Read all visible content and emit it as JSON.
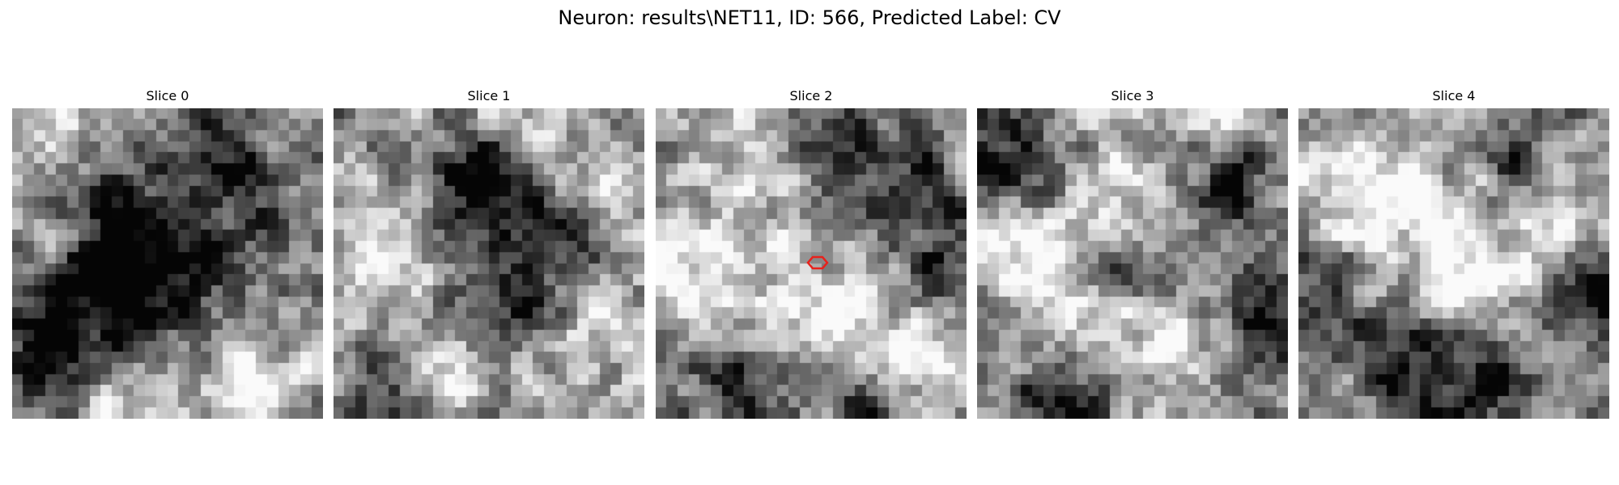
{
  "figure": {
    "title": "Neuron: results\\NET11, ID: 566, Predicted Label: CV"
  },
  "colormap": "gray",
  "grid_size": 28,
  "marker": {
    "shape": "hexagon",
    "color": "#e8221c",
    "panel_index": 2
  },
  "panels": [
    {
      "label": "Slice 0",
      "seed": 11,
      "dark": [
        [
          0.4,
          0.38,
          0.26
        ],
        [
          0.48,
          0.52,
          0.22
        ],
        [
          0.1,
          0.82,
          0.16
        ],
        [
          0.24,
          0.62,
          0.18
        ],
        [
          0.7,
          0.22,
          0.18
        ]
      ],
      "light": [
        [
          0.76,
          0.9,
          0.22
        ],
        [
          0.55,
          0.32,
          0.16
        ],
        [
          0.18,
          0.08,
          0.15
        ],
        [
          0.1,
          0.46,
          0.14
        ],
        [
          0.35,
          0.98,
          0.14
        ]
      ]
    },
    {
      "label": "Slice 1",
      "seed": 23,
      "dark": [
        [
          0.52,
          0.36,
          0.22
        ],
        [
          0.46,
          0.2,
          0.16
        ],
        [
          0.6,
          0.64,
          0.14
        ],
        [
          0.18,
          0.92,
          0.14
        ],
        [
          0.82,
          0.48,
          0.12
        ]
      ],
      "light": [
        [
          0.18,
          0.42,
          0.26
        ],
        [
          0.84,
          0.68,
          0.22
        ],
        [
          0.88,
          0.26,
          0.14
        ],
        [
          0.38,
          0.86,
          0.14
        ],
        [
          0.62,
          0.08,
          0.14
        ]
      ]
    },
    {
      "label": "Slice 2",
      "seed": 37,
      "dark": [
        [
          0.8,
          0.26,
          0.18
        ],
        [
          0.52,
          0.04,
          0.16
        ],
        [
          0.94,
          0.54,
          0.14
        ],
        [
          0.26,
          0.9,
          0.14
        ],
        [
          0.7,
          0.96,
          0.12
        ]
      ],
      "light": [
        [
          0.18,
          0.5,
          0.28
        ],
        [
          0.34,
          0.1,
          0.16
        ],
        [
          0.56,
          0.64,
          0.16
        ],
        [
          0.84,
          0.88,
          0.16
        ],
        [
          0.88,
          0.72,
          0.12
        ]
      ]
    },
    {
      "label": "Slice 3",
      "seed": 53,
      "dark": [
        [
          0.1,
          0.16,
          0.18
        ],
        [
          0.8,
          0.22,
          0.14
        ],
        [
          0.94,
          0.7,
          0.16
        ],
        [
          0.48,
          0.54,
          0.12
        ],
        [
          0.26,
          0.96,
          0.14
        ]
      ],
      "light": [
        [
          0.44,
          0.26,
          0.22
        ],
        [
          0.3,
          0.64,
          0.18
        ],
        [
          0.6,
          0.76,
          0.18
        ],
        [
          0.14,
          0.42,
          0.14
        ],
        [
          0.74,
          0.04,
          0.12
        ]
      ]
    },
    {
      "label": "Slice 4",
      "seed": 71,
      "dark": [
        [
          0.36,
          0.82,
          0.22
        ],
        [
          0.08,
          0.6,
          0.14
        ],
        [
          0.64,
          0.86,
          0.16
        ],
        [
          0.92,
          0.58,
          0.16
        ],
        [
          0.72,
          0.16,
          0.14
        ]
      ],
      "light": [
        [
          0.32,
          0.44,
          0.26
        ],
        [
          0.64,
          0.58,
          0.22
        ],
        [
          0.2,
          0.16,
          0.16
        ],
        [
          0.8,
          0.3,
          0.16
        ],
        [
          0.16,
          0.94,
          0.12
        ]
      ]
    }
  ]
}
